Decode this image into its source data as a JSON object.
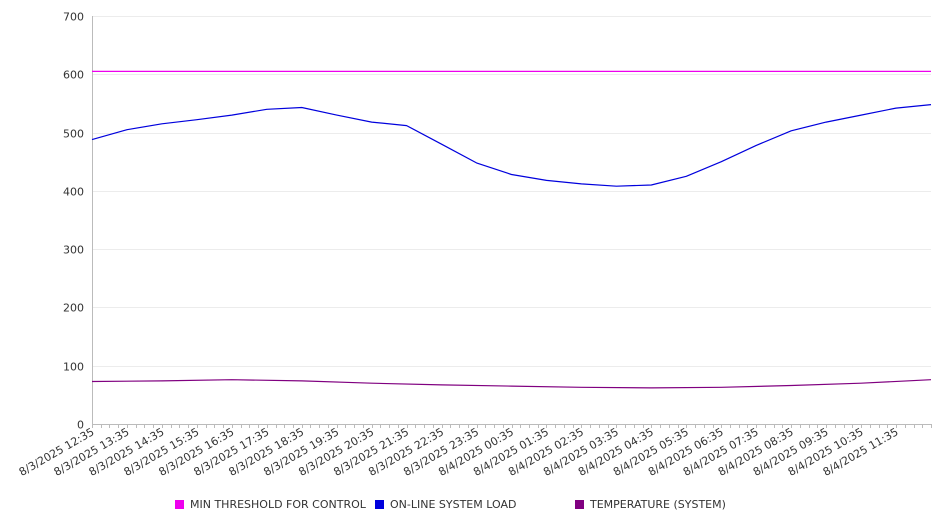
{
  "chart_data": {
    "type": "line",
    "title": "",
    "xlabel": "",
    "ylabel": "",
    "ylim": [
      0,
      700
    ],
    "y_ticks": [
      0,
      100,
      200,
      300,
      400,
      500,
      600,
      700
    ],
    "grid": "horizontal",
    "legend_position": "bottom",
    "x_start": "8/3/2025 12:35",
    "x_end": "8/4/2025 12:35",
    "x_tick_labels": [
      "8/3/2025 12:35",
      "8/3/2025 13:35",
      "8/3/2025 14:35",
      "8/3/2025 15:35",
      "8/3/2025 16:35",
      "8/3/2025 17:35",
      "8/3/2025 18:35",
      "8/3/2025 19:35",
      "8/3/2025 20:35",
      "8/3/2025 21:35",
      "8/3/2025 22:35",
      "8/3/2025 23:35",
      "8/4/2025 00:35",
      "8/4/2025 01:35",
      "8/4/2025 02:35",
      "8/4/2025 03:35",
      "8/4/2025 04:35",
      "8/4/2025 05:35",
      "8/4/2025 06:35",
      "8/4/2025 07:35",
      "8/4/2025 08:35",
      "8/4/2025 09:35",
      "8/4/2025 10:35",
      "8/4/2025 11:35"
    ],
    "series": [
      {
        "name": "MIN THRESHOLD FOR CONTROL",
        "color": "#ee00ee",
        "x": [
          "8/3/2025 12:35",
          "8/4/2025 12:35"
        ],
        "y": [
          605,
          605
        ]
      },
      {
        "name": "ON-LINE SYSTEM LOAD",
        "color": "#0000dd",
        "x": [
          "8/3/2025 12:35",
          "8/3/2025 13:35",
          "8/3/2025 14:35",
          "8/3/2025 15:35",
          "8/3/2025 16:35",
          "8/3/2025 17:35",
          "8/3/2025 18:35",
          "8/3/2025 19:35",
          "8/3/2025 20:35",
          "8/3/2025 21:35",
          "8/3/2025 22:35",
          "8/3/2025 23:35",
          "8/4/2025 00:35",
          "8/4/2025 01:35",
          "8/4/2025 02:35",
          "8/4/2025 03:35",
          "8/4/2025 04:35",
          "8/4/2025 05:35",
          "8/4/2025 06:35",
          "8/4/2025 07:35",
          "8/4/2025 08:35",
          "8/4/2025 09:35",
          "8/4/2025 10:35",
          "8/4/2025 11:35",
          "8/4/2025 12:35"
        ],
        "y": [
          488,
          505,
          515,
          522,
          530,
          540,
          543,
          530,
          518,
          512,
          480,
          448,
          428,
          418,
          412,
          408,
          410,
          425,
          450,
          478,
          503,
          518,
          530,
          542,
          548
        ]
      },
      {
        "name": "TEMPERATURE (SYSTEM)",
        "color": "#800080",
        "x": [
          "8/3/2025 12:35",
          "8/3/2025 14:35",
          "8/3/2025 16:35",
          "8/3/2025 18:35",
          "8/3/2025 20:35",
          "8/3/2025 22:35",
          "8/4/2025 00:35",
          "8/4/2025 02:35",
          "8/4/2025 04:35",
          "8/4/2025 06:35",
          "8/4/2025 08:35",
          "8/4/2025 10:35",
          "8/4/2025 12:35"
        ],
        "y": [
          73,
          74,
          76,
          74,
          70,
          67,
          65,
          63,
          62,
          63,
          66,
          70,
          76
        ]
      }
    ]
  }
}
